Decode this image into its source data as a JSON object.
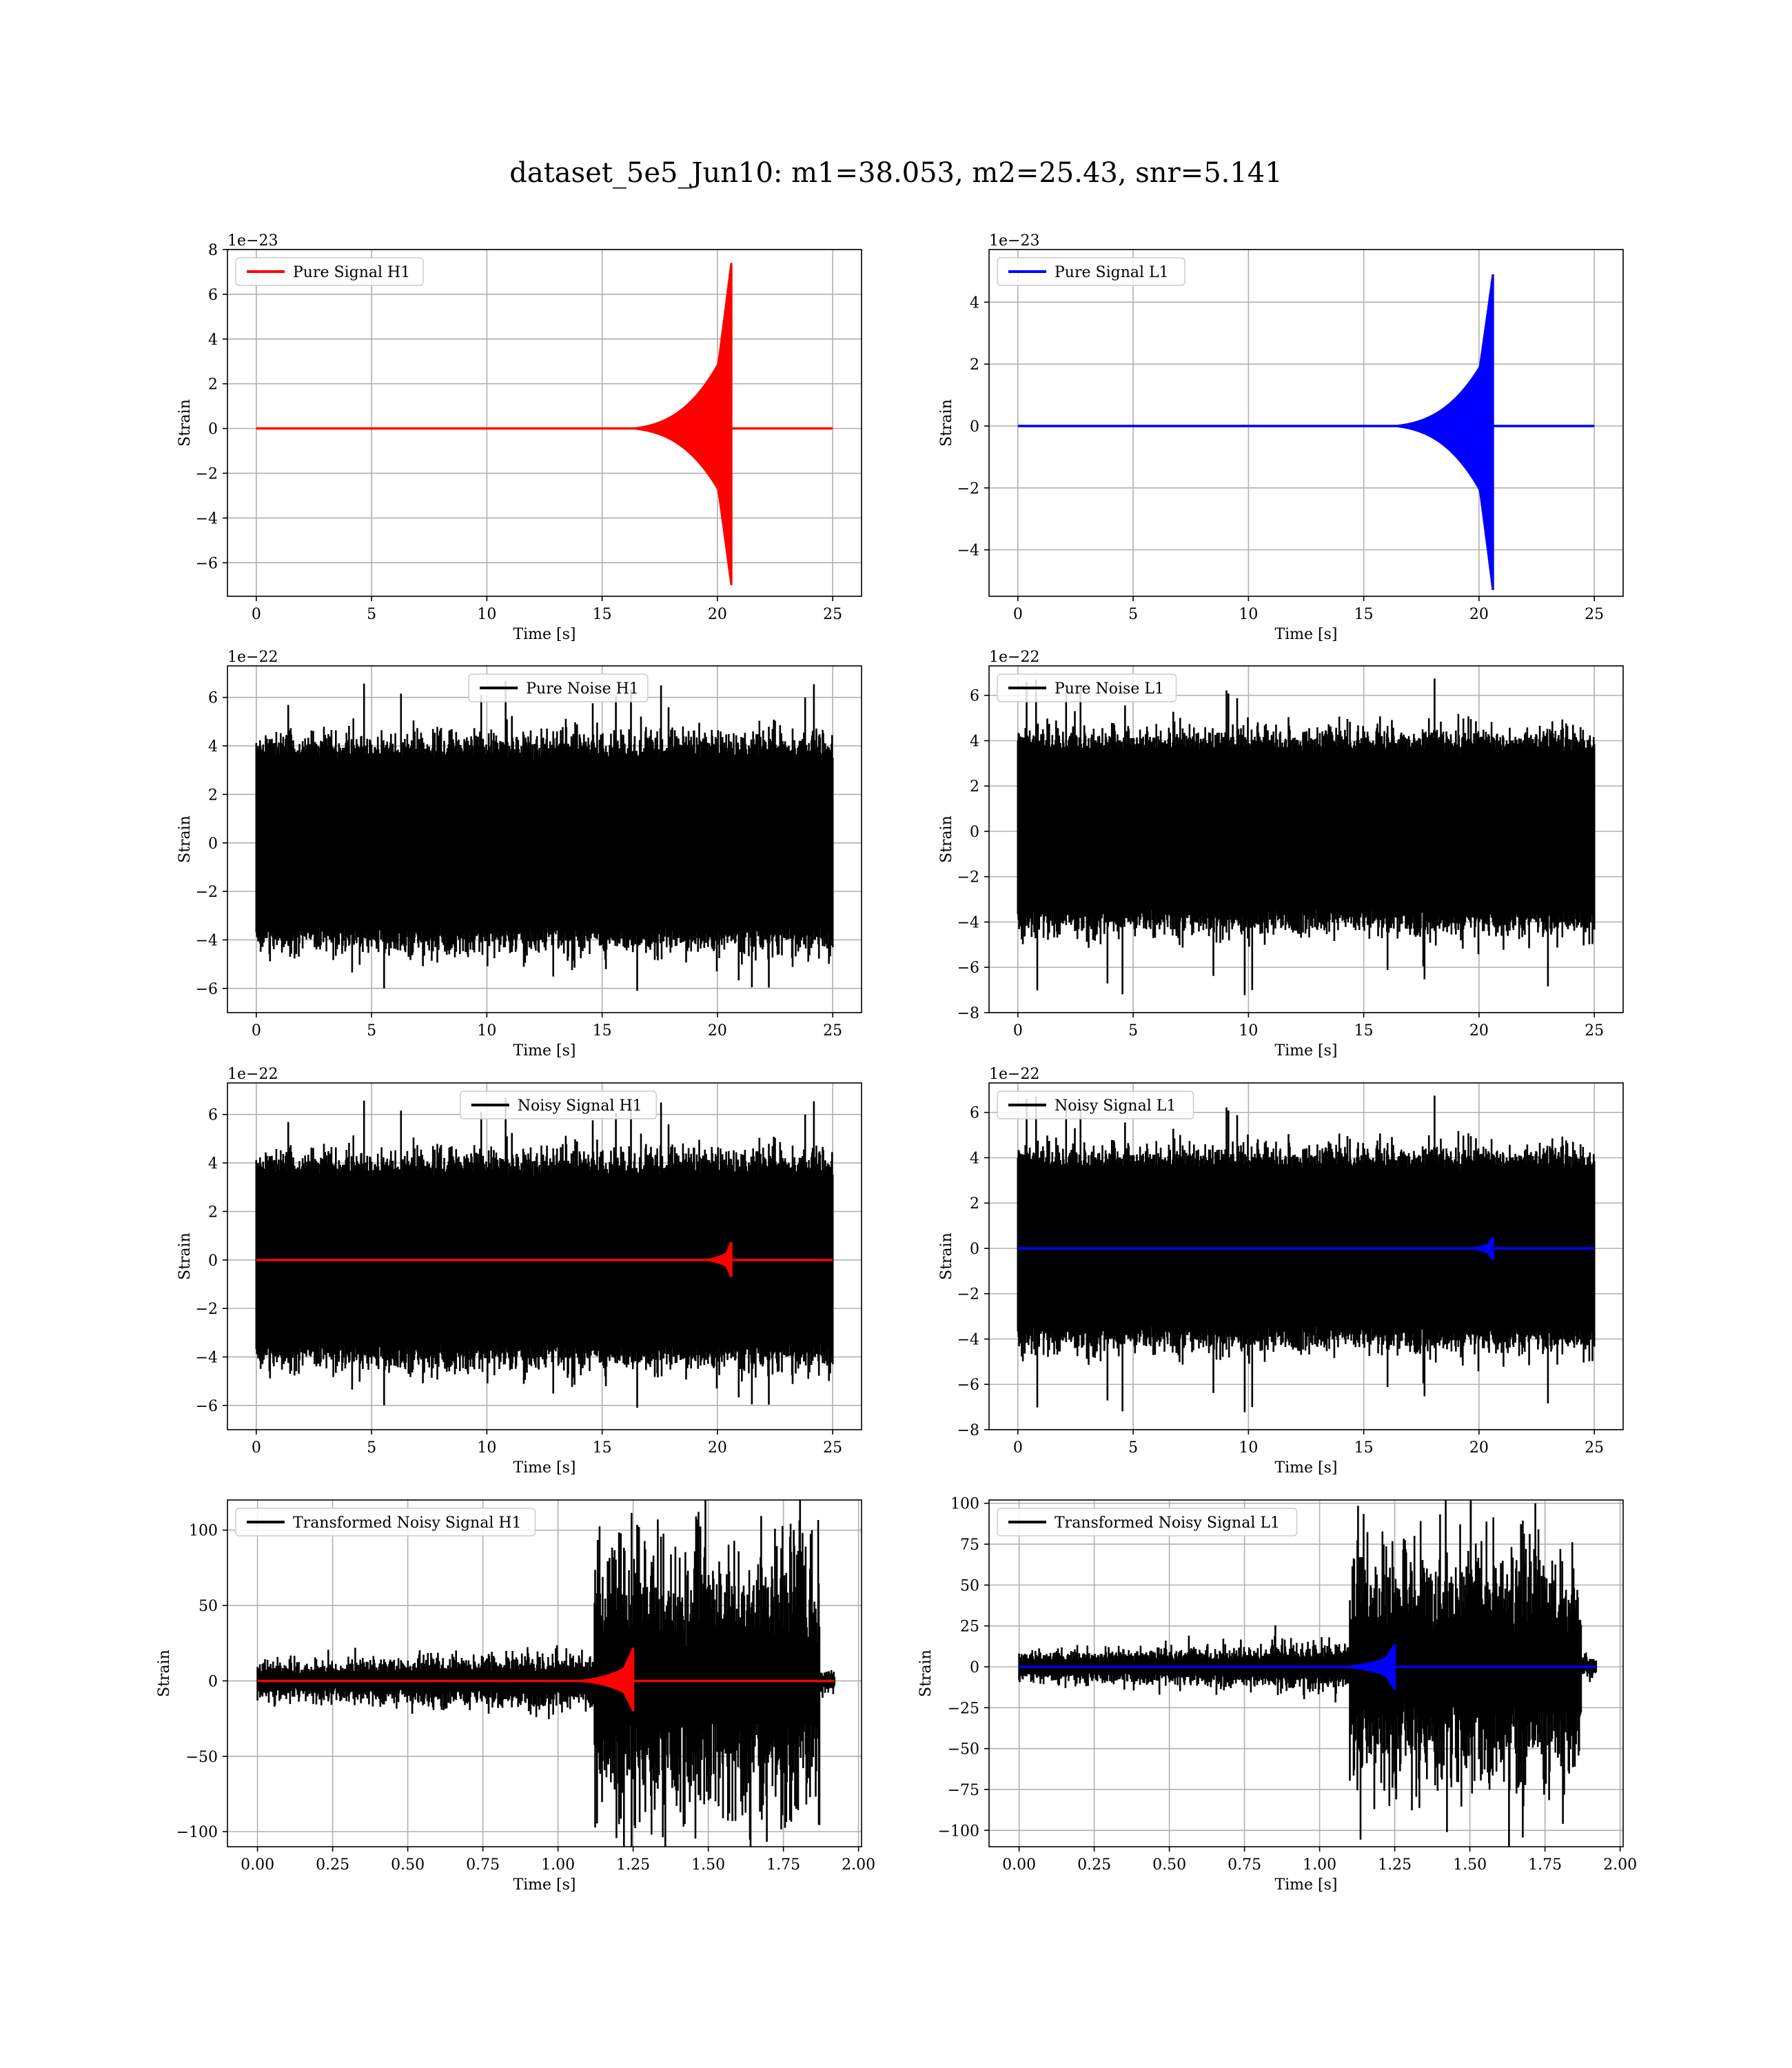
{
  "figure": {
    "title": "dataset_5e5_Jun10: m1=38.053, m2=25.43, snr=5.141"
  },
  "colors": {
    "h1_signal": "#ff0000",
    "l1_signal": "#0000ff",
    "noise": "#000000",
    "grid": "#b0b0b0"
  },
  "chart_data": [
    {
      "id": "pure-signal-h1",
      "type": "line",
      "title": "",
      "xlabel": "Time [s]",
      "ylabel": "Strain",
      "offset_text": "1e−23",
      "xlim": [
        -1.25,
        26.25
      ],
      "ylim": [
        -7.5,
        8.0
      ],
      "xticks": [
        0,
        5,
        10,
        15,
        20,
        25
      ],
      "yticks": [
        -6,
        -4,
        -2,
        0,
        2,
        4,
        6,
        8
      ],
      "grid": true,
      "legend_position": "upper left",
      "series": [
        {
          "name": "Pure Signal H1",
          "color": "#ff0000",
          "kind": "chirp",
          "x_start": 0,
          "x_end": 25,
          "t_merge": 20.6,
          "onset": 15.0,
          "peak_pos": 7.4,
          "peak_neg": -7.0
        }
      ]
    },
    {
      "id": "pure-signal-l1",
      "type": "line",
      "title": "",
      "xlabel": "Time [s]",
      "ylabel": "Strain",
      "offset_text": "1e−23",
      "xlim": [
        -1.25,
        26.25
      ],
      "ylim": [
        -5.5,
        5.7
      ],
      "xticks": [
        0,
        5,
        10,
        15,
        20,
        25
      ],
      "yticks": [
        -4,
        -2,
        0,
        2,
        4
      ],
      "grid": true,
      "legend_position": "upper left",
      "series": [
        {
          "name": "Pure Signal L1",
          "color": "#0000ff",
          "kind": "chirp",
          "x_start": 0,
          "x_end": 25,
          "t_merge": 20.6,
          "onset": 15.0,
          "peak_pos": 4.9,
          "peak_neg": -5.3
        }
      ]
    },
    {
      "id": "pure-noise-h1",
      "type": "line",
      "title": "",
      "xlabel": "Time [s]",
      "ylabel": "Strain",
      "offset_text": "1e−22",
      "xlim": [
        -1.25,
        26.25
      ],
      "ylim": [
        -7.0,
        7.3
      ],
      "xticks": [
        0,
        5,
        10,
        15,
        20,
        25
      ],
      "yticks": [
        -6,
        -4,
        -2,
        0,
        2,
        4,
        6
      ],
      "grid": true,
      "legend_position": "upper center",
      "series": [
        {
          "name": "Pure Noise H1",
          "color": "#000000",
          "kind": "noise",
          "x_start": 0,
          "x_end": 25,
          "band": 3.6,
          "spike_max": 6.7,
          "spike_min": -6.3,
          "seed": 11
        }
      ]
    },
    {
      "id": "pure-noise-l1",
      "type": "line",
      "title": "",
      "xlabel": "Time [s]",
      "ylabel": "Strain",
      "offset_text": "1e−22",
      "xlim": [
        -1.25,
        26.25
      ],
      "ylim": [
        -8.0,
        7.3
      ],
      "xticks": [
        0,
        5,
        10,
        15,
        20,
        25
      ],
      "yticks": [
        -8,
        -6,
        -4,
        -2,
        0,
        2,
        4,
        6
      ],
      "grid": true,
      "legend_position": "upper left",
      "series": [
        {
          "name": "Pure Noise L1",
          "color": "#000000",
          "kind": "noise",
          "x_start": 0,
          "x_end": 25,
          "band": 3.6,
          "spike_max": 6.8,
          "spike_min": -7.4,
          "seed": 23
        }
      ]
    },
    {
      "id": "noisy-signal-h1",
      "type": "line",
      "title": "",
      "xlabel": "Time [s]",
      "ylabel": "Strain",
      "offset_text": "1e−22",
      "xlim": [
        -1.25,
        26.25
      ],
      "ylim": [
        -7.0,
        7.3
      ],
      "xticks": [
        0,
        5,
        10,
        15,
        20,
        25
      ],
      "yticks": [
        -6,
        -4,
        -2,
        0,
        2,
        4,
        6
      ],
      "grid": true,
      "legend_position": "upper center",
      "series": [
        {
          "name": "Noisy Signal H1",
          "color": "#000000",
          "kind": "noise",
          "x_start": 0,
          "x_end": 25,
          "band": 3.6,
          "spike_max": 6.7,
          "spike_min": -6.3,
          "seed": 11
        },
        {
          "name": "",
          "color": "#ff0000",
          "kind": "chirp",
          "x_start": 0,
          "x_end": 25,
          "t_merge": 20.6,
          "onset": 18.5,
          "peak_pos": 0.74,
          "peak_neg": -0.7
        }
      ]
    },
    {
      "id": "noisy-signal-l1",
      "type": "line",
      "title": "",
      "xlabel": "Time [s]",
      "ylabel": "Strain",
      "offset_text": "1e−22",
      "xlim": [
        -1.25,
        26.25
      ],
      "ylim": [
        -8.0,
        7.3
      ],
      "xticks": [
        0,
        5,
        10,
        15,
        20,
        25
      ],
      "yticks": [
        -8,
        -6,
        -4,
        -2,
        0,
        2,
        4,
        6
      ],
      "grid": true,
      "legend_position": "upper left",
      "series": [
        {
          "name": "Noisy Signal L1",
          "color": "#000000",
          "kind": "noise",
          "x_start": 0,
          "x_end": 25,
          "band": 3.6,
          "spike_max": 6.8,
          "spike_min": -7.4,
          "seed": 23
        },
        {
          "name": "",
          "color": "#0000ff",
          "kind": "chirp",
          "x_start": 0,
          "x_end": 25,
          "t_merge": 20.6,
          "onset": 18.5,
          "peak_pos": 0.49,
          "peak_neg": -0.53
        }
      ]
    },
    {
      "id": "transformed-noisy-signal-h1",
      "type": "line",
      "title": "",
      "xlabel": "Time [s]",
      "ylabel": "Strain",
      "offset_text": "",
      "xlim": [
        -0.1,
        2.01
      ],
      "ylim": [
        -110,
        120
      ],
      "xticks": [
        0.0,
        0.25,
        0.5,
        0.75,
        1.0,
        1.25,
        1.5,
        1.75,
        2.0
      ],
      "xtick_labels": [
        "0.00",
        "0.25",
        "0.50",
        "0.75",
        "1.00",
        "1.25",
        "1.50",
        "1.75",
        "2.00"
      ],
      "yticks": [
        -100,
        -50,
        0,
        50,
        100
      ],
      "grid": true,
      "legend_position": "upper left",
      "series": [
        {
          "name": "Transformed Noisy Signal H1",
          "color": "#000000",
          "kind": "whitened",
          "x_start": 0,
          "x_end": 1.92,
          "x_step": 1.12,
          "x_cut": 1.87,
          "band_low": 8,
          "band_high": 55,
          "spike_max": 110,
          "spike_min": -107,
          "seed": 37
        },
        {
          "name": "",
          "color": "#ff0000",
          "kind": "chirp",
          "x_start": 0,
          "x_end": 1.92,
          "t_merge": 1.25,
          "onset": 0.95,
          "peak_pos": 22,
          "peak_neg": -20
        }
      ]
    },
    {
      "id": "transformed-noisy-signal-l1",
      "type": "line",
      "title": "",
      "xlabel": "Time [s]",
      "ylabel": "Strain",
      "offset_text": "",
      "xlim": [
        -0.1,
        2.01
      ],
      "ylim": [
        -110,
        102
      ],
      "xticks": [
        0.0,
        0.25,
        0.5,
        0.75,
        1.0,
        1.25,
        1.5,
        1.75,
        2.0
      ],
      "xtick_labels": [
        "0.00",
        "0.25",
        "0.50",
        "0.75",
        "1.00",
        "1.25",
        "1.50",
        "1.75",
        "2.00"
      ],
      "yticks": [
        -100,
        -75,
        -50,
        -25,
        0,
        25,
        50,
        75,
        100
      ],
      "grid": true,
      "legend_position": "upper left",
      "series": [
        {
          "name": "Transformed Noisy Signal L1",
          "color": "#000000",
          "kind": "whitened",
          "x_start": 0,
          "x_end": 1.92,
          "x_step": 1.1,
          "x_cut": 1.87,
          "band_low": 6,
          "band_high": 45,
          "spike_max": 94,
          "spike_min": -108,
          "seed": 53
        },
        {
          "name": "",
          "color": "#0000ff",
          "kind": "chirp",
          "x_start": 0,
          "x_end": 1.92,
          "t_merge": 1.25,
          "onset": 0.95,
          "peak_pos": 14,
          "peak_neg": -14
        }
      ]
    }
  ]
}
